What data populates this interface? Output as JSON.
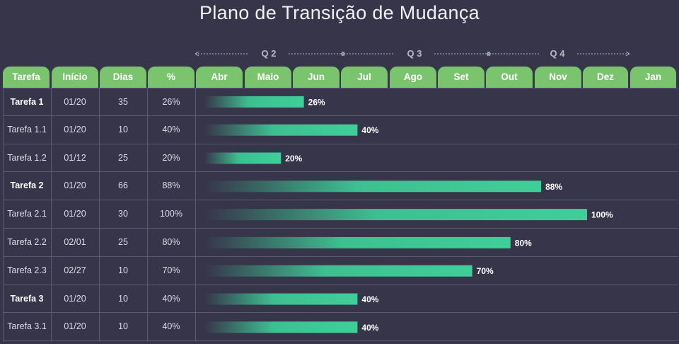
{
  "title": "Plano de Transição de Mudança",
  "quarters": [
    "Q 2",
    "Q 3",
    "Q 4"
  ],
  "columns": {
    "task": "Tarefa",
    "start": "Início",
    "days": "Dias",
    "pct": "%"
  },
  "months": [
    "Abr",
    "Maio",
    "Jun",
    "Jul",
    "Ago",
    "Set",
    "Out",
    "Nov",
    "Dez",
    "Jan"
  ],
  "colors": {
    "background": "#37354a",
    "header": "#7bc46e",
    "bar": "#3ecf99"
  },
  "chart_data": {
    "type": "bar",
    "title": "Plano de Transição de Mudança",
    "orientation": "horizontal",
    "categories": [
      "Tarefa 1",
      "Tarefa 1.1",
      "Tarefa 1.2",
      "Tarefa 2",
      "Tarefa 2.1",
      "Tarefa 2.2",
      "Tarefa 2.3",
      "Tarefa 3",
      "Tarefa 3.1"
    ],
    "values": [
      26,
      40,
      20,
      88,
      100,
      80,
      70,
      40,
      40
    ],
    "value_labels": [
      "26%",
      "40%",
      "20%",
      "88%",
      "100%",
      "80%",
      "70%",
      "40%",
      "40%"
    ],
    "xlim": [
      0,
      100
    ],
    "rows": [
      {
        "task": "Tarefa 1",
        "start": "01/20",
        "days": "35",
        "pct": "26%",
        "bold": true
      },
      {
        "task": "Tarefa 1.1",
        "start": "01/20",
        "days": "10",
        "pct": "40%",
        "bold": false
      },
      {
        "task": "Tarefa 1.2",
        "start": "01/12",
        "days": "25",
        "pct": "20%",
        "bold": false
      },
      {
        "task": "Tarefa 2",
        "start": "01/20",
        "days": "66",
        "pct": "88%",
        "bold": true
      },
      {
        "task": "Tarefa 2.1",
        "start": "01/20",
        "days": "30",
        "pct": "100%",
        "bold": false
      },
      {
        "task": "Tarefa 2.2",
        "start": "02/01",
        "days": "25",
        "pct": "80%",
        "bold": false
      },
      {
        "task": "Tarefa 2.3",
        "start": "02/27",
        "days": "10",
        "pct": "70%",
        "bold": false
      },
      {
        "task": "Tarefa 3",
        "start": "01/20",
        "days": "10",
        "pct": "40%",
        "bold": true
      },
      {
        "task": "Tarefa 3.1",
        "start": "01/20",
        "days": "10",
        "pct": "40%",
        "bold": false
      }
    ]
  }
}
